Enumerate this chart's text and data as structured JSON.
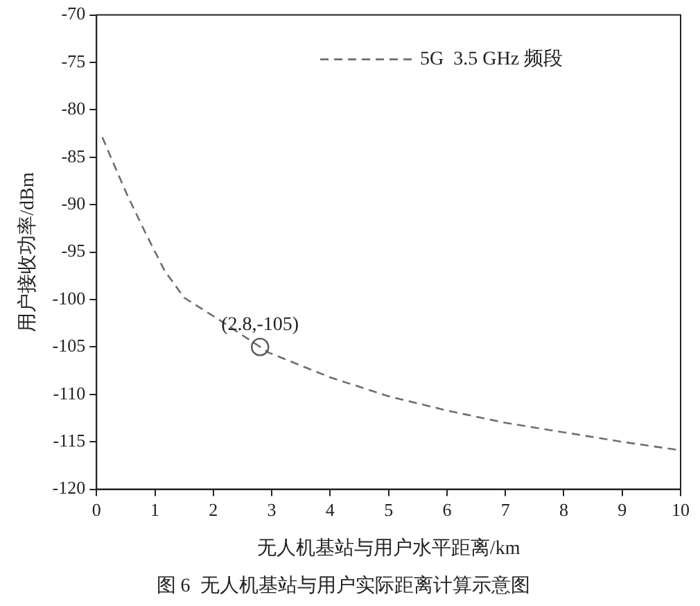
{
  "chart_data": {
    "type": "line",
    "title": "图 6  无人机基站与用户实际距离计算示意图",
    "xlabel": "无人机基站与用户水平距离/km",
    "ylabel": "用户接收功率/dBm",
    "x": [
      0.1,
      0.28,
      0.52,
      0.84,
      1.17,
      1.5,
      2.14,
      2.95,
      4,
      5,
      6,
      7,
      8,
      9,
      10
    ],
    "series": [
      {
        "name": "5G  3.5 GHz 频段",
        "color": "#6e6e6e",
        "values": [
          -82.9,
          -85.5,
          -88.9,
          -93,
          -97,
          -99.8,
          -102.3,
          -105.6,
          -108.2,
          -110.2,
          -111.7,
          -113,
          -114,
          -115,
          -115.9
        ]
      }
    ],
    "xlim": [
      0,
      10
    ],
    "xticks": [
      0,
      1,
      2,
      3,
      4,
      5,
      6,
      7,
      8,
      9,
      10
    ],
    "ylim": [
      -120,
      -70
    ],
    "yticks": [
      -120,
      -115,
      -110,
      -105,
      -100,
      -95,
      -90,
      -85,
      -80,
      -75,
      -70
    ],
    "line_style": "dashed",
    "marker": "none",
    "grid": false,
    "legend": "top right",
    "annotations": [
      {
        "text": "(2.8,-105)",
        "x": 2.8,
        "y": -105
      }
    ]
  }
}
